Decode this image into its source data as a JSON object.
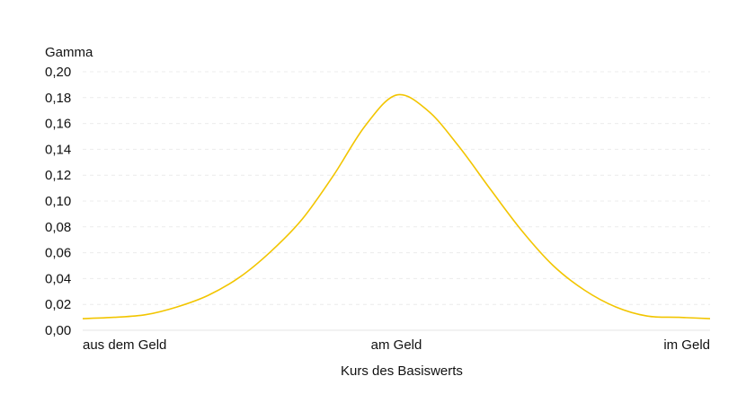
{
  "chart_data": {
    "type": "line",
    "title": "",
    "ylabel": "Gamma",
    "xlabel": "Kurs des Basiswerts",
    "x_categories": [
      "aus dem Geld",
      "am Geld",
      "im Geld"
    ],
    "ylim": [
      0,
      0.2
    ],
    "yticks": [
      "0,00",
      "0,02",
      "0,04",
      "0,06",
      "0,08",
      "0,10",
      "0,12",
      "0,14",
      "0,16",
      "0,18",
      "0,20"
    ],
    "grid": true,
    "series": [
      {
        "color": "#f2c500",
        "x": [
          0.0,
          0.05,
          0.1,
          0.15,
          0.2,
          0.25,
          0.3,
          0.35,
          0.4,
          0.45,
          0.5,
          0.55,
          0.6,
          0.65,
          0.7,
          0.75,
          0.8,
          0.85,
          0.9,
          0.95,
          1.0
        ],
        "y": [
          0.009,
          0.01,
          0.012,
          0.018,
          0.027,
          0.041,
          0.061,
          0.086,
          0.12,
          0.158,
          0.182,
          0.17,
          0.142,
          0.109,
          0.077,
          0.05,
          0.031,
          0.018,
          0.011,
          0.01,
          0.009
        ]
      }
    ]
  }
}
